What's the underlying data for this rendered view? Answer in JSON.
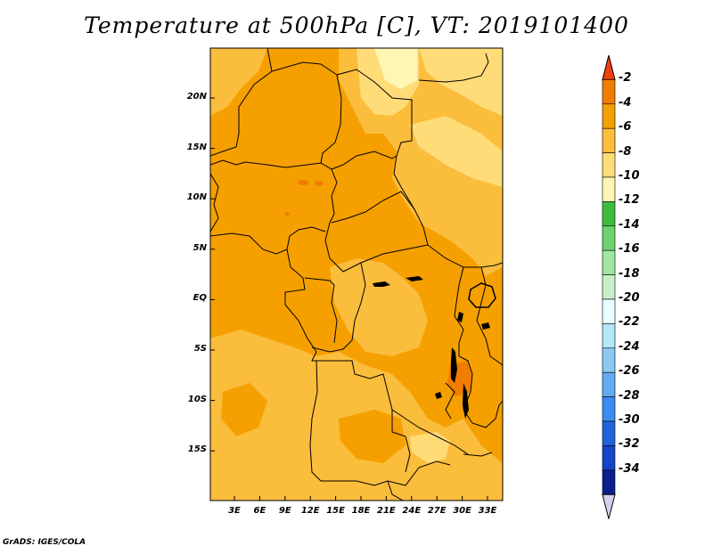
{
  "title": "Temperature at 500hPa [C], VT: 2019101400",
  "credit": "GrADS: IGES/COLA",
  "map": {
    "variable": "Temperature at 500hPa",
    "units": "C",
    "valid_time": "2019101400",
    "lat_labels": [
      "20N",
      "15N",
      "10N",
      "5N",
      "EQ",
      "5S",
      "10S",
      "15S"
    ],
    "lon_labels": [
      "3E",
      "6E",
      "9E",
      "12E",
      "15E",
      "18E",
      "21E",
      "24E",
      "27E",
      "30E",
      "33E"
    ]
  },
  "colorbar": {
    "labels": [
      "-2",
      "-4",
      "-6",
      "-8",
      "-10",
      "-12",
      "-14",
      "-16",
      "-18",
      "-20",
      "-22",
      "-24",
      "-26",
      "-28",
      "-30",
      "-32",
      "-34"
    ],
    "colors": [
      "#f04010",
      "#f07c00",
      "#f5a000",
      "#fbbd3c",
      "#ffdc78",
      "#fff5b4",
      "#3cbe3c",
      "#6ed26e",
      "#a0e6a0",
      "#c8f0c8",
      "#e6ffff",
      "#b4e6fa",
      "#8cc8f0",
      "#64aaf0",
      "#3c8cf0",
      "#2064dc",
      "#1444c8",
      "#0a1e8c",
      "#d2d2f0"
    ]
  },
  "colors": {
    "land_base": "#f5a000",
    "warm_patch": "#f07c00",
    "cool_patch": "#fbbd3c",
    "coolest_patch": "#ffdc78",
    "lightest_patch": "#fff5b4"
  }
}
